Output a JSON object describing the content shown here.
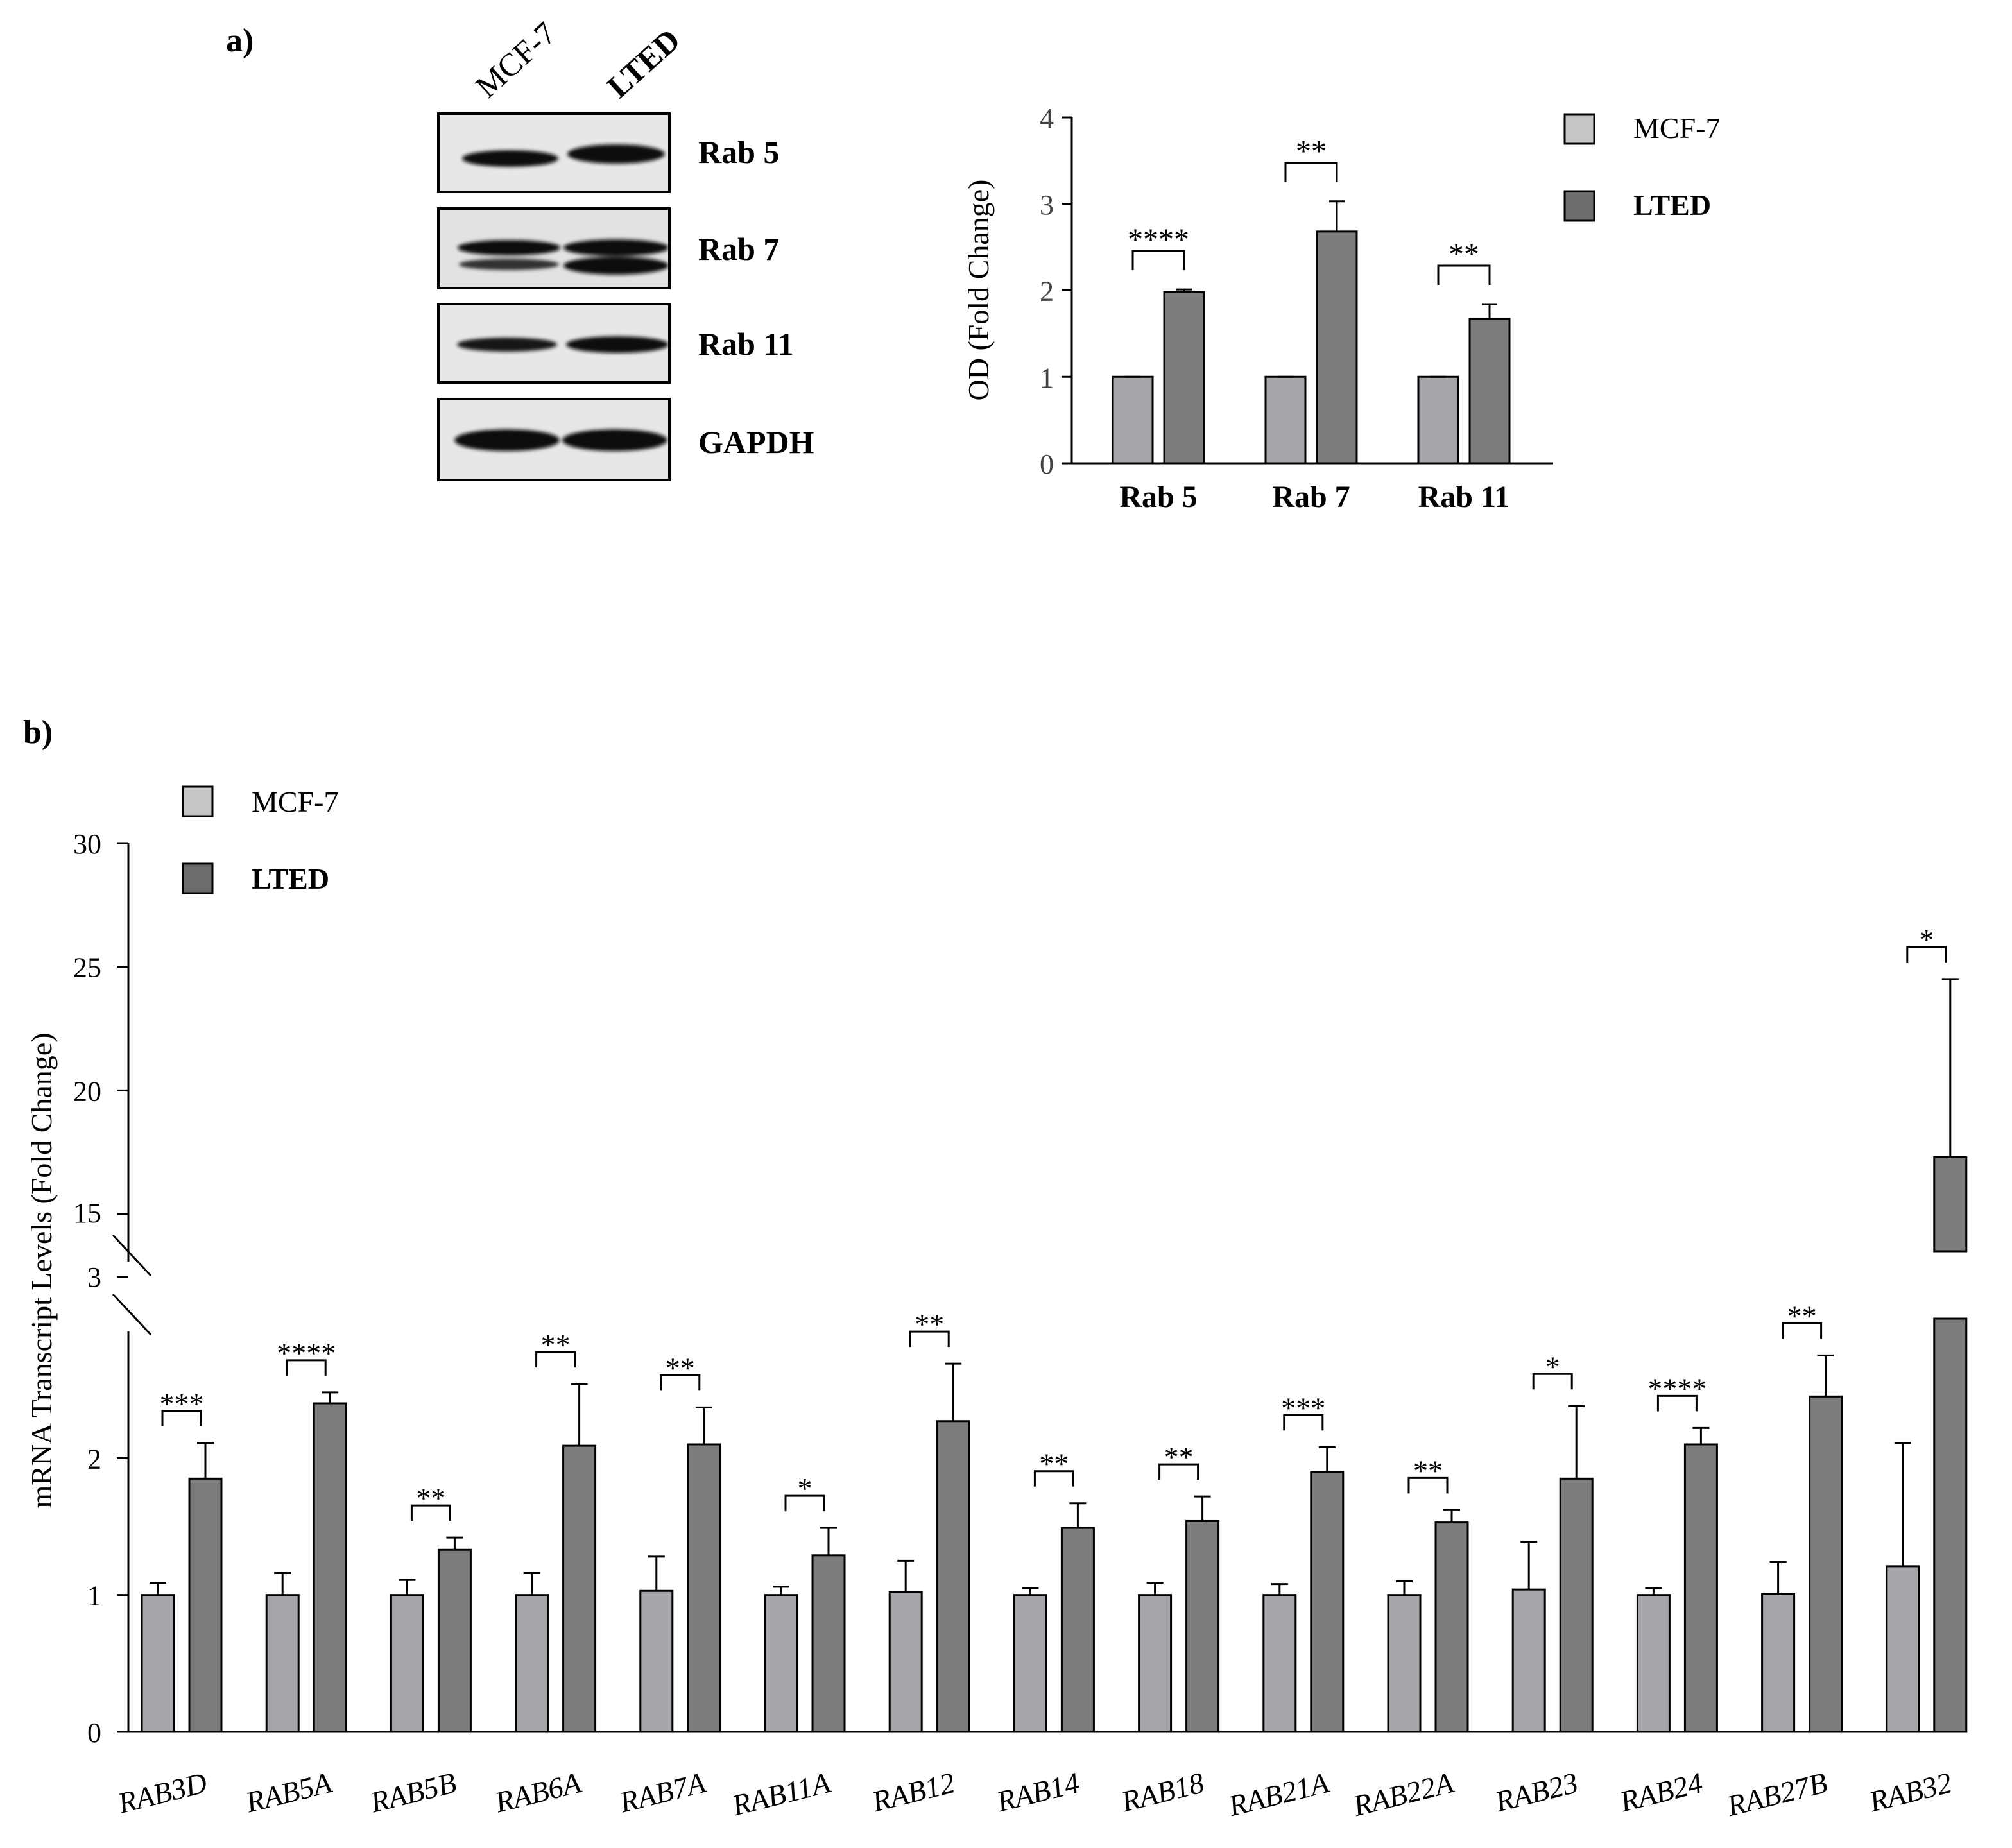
{
  "panel_a_label": "a)",
  "panel_b_label": "b)",
  "blot": {
    "lane_labels": [
      "MCF-7",
      "LTED"
    ],
    "rows": [
      "Rab 5",
      "Rab 7",
      "Rab 11",
      "GAPDH"
    ]
  },
  "colors": {
    "mcf7": "#a7a7ab",
    "lted": "#7c7c7e",
    "mcf7_legend": "#c6c6c6",
    "lted_legend": "#6c6c6c",
    "axis": "#000000"
  },
  "chart_data": [
    {
      "type": "bar",
      "panel": "a",
      "ylabel": "OD (Fold Change)",
      "ylim": [
        0,
        4
      ],
      "yticks": [
        "0",
        "1",
        "2",
        "3",
        "4"
      ],
      "categories": [
        "Rab 5",
        "Rab 7",
        "Rab 11"
      ],
      "series": [
        {
          "name": "MCF-7",
          "values": [
            1.0,
            1.0,
            1.0
          ],
          "errors": [
            0.0,
            0.0,
            0.0
          ]
        },
        {
          "name": "LTED",
          "values": [
            1.98,
            2.68,
            1.67
          ],
          "errors": [
            0.03,
            0.35,
            0.17
          ]
        }
      ],
      "significance": [
        "****",
        "**",
        "**"
      ],
      "legend": [
        "MCF-7",
        "LTED"
      ],
      "legend_position": "right"
    },
    {
      "type": "bar",
      "panel": "b",
      "ylabel": "mRNA Transcript Levels (Fold Change)",
      "y_axis_break": [
        3,
        15
      ],
      "yticks": [
        "0",
        "1",
        "2",
        "3",
        "15",
        "20",
        "25",
        "30"
      ],
      "categories": [
        "RAB3D",
        "RAB5A",
        "RAB5B",
        "RAB6A",
        "RAB7A",
        "RAB11A",
        "RAB12",
        "RAB14",
        "RAB18",
        "RAB21A",
        "RAB22A",
        "RAB23",
        "RAB24",
        "RAB27B",
        "RAB32"
      ],
      "series": [
        {
          "name": "MCF-7",
          "values": [
            1.0,
            1.0,
            1.0,
            1.0,
            1.03,
            1.0,
            1.02,
            1.0,
            1.0,
            1.0,
            1.0,
            1.04,
            1.0,
            1.01,
            1.21
          ],
          "errors": [
            0.09,
            0.16,
            0.11,
            0.16,
            0.25,
            0.06,
            0.23,
            0.05,
            0.09,
            0.08,
            0.1,
            0.35,
            0.05,
            0.23,
            0.9
          ]
        },
        {
          "name": "LTED",
          "values": [
            1.85,
            2.4,
            1.33,
            2.09,
            2.1,
            1.29,
            2.27,
            1.49,
            1.54,
            1.9,
            1.53,
            1.85,
            2.1,
            2.45,
            17.3
          ],
          "errors": [
            0.26,
            0.08,
            0.09,
            0.45,
            0.27,
            0.2,
            0.42,
            0.18,
            0.18,
            0.18,
            0.09,
            0.53,
            0.12,
            0.3,
            7.2
          ]
        }
      ],
      "significance": [
        "***",
        "****",
        "**",
        "**",
        "**",
        "*",
        "**",
        "**",
        "**",
        "***",
        "**",
        "*",
        "****",
        "**",
        "*"
      ],
      "legend": [
        "MCF-7",
        "LTED"
      ],
      "legend_position": "top-left"
    }
  ]
}
